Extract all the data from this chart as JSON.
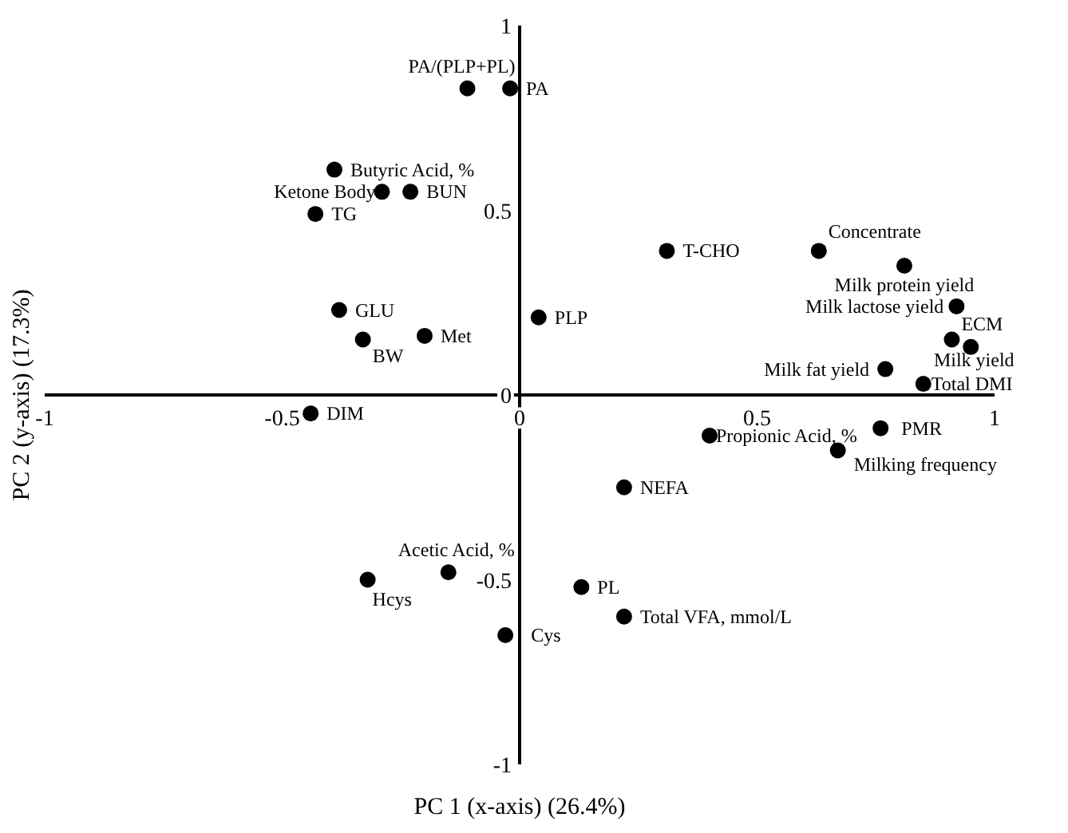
{
  "chart_data": {
    "type": "scatter",
    "xlabel": "PC 1 (x-axis) (26.4%)",
    "ylabel": "PC 2 (y-axis) (17.3%)",
    "xlim": [
      -1,
      1
    ],
    "ylim": [
      -1,
      1
    ],
    "xticks": [
      -1,
      -0.5,
      0,
      0.5,
      1
    ],
    "yticks": [
      -1,
      -0.5,
      0,
      0.5,
      1
    ],
    "grid": false,
    "legend": false,
    "marker": "circle",
    "series": [
      {
        "name": "PA/(PLP+PL)",
        "color": "#000000",
        "x": [
          -0.11
        ],
        "values": [
          0.83
        ]
      },
      {
        "name": "PA",
        "color": "#000000",
        "x": [
          -0.02
        ],
        "values": [
          0.83
        ]
      },
      {
        "name": "Butyric Acid, %",
        "color": "#000000",
        "x": [
          -0.39
        ],
        "values": [
          0.61
        ]
      },
      {
        "name": "Ketone Body",
        "color": "#000000",
        "x": [
          -0.29
        ],
        "values": [
          0.55
        ]
      },
      {
        "name": "BUN",
        "color": "#000000",
        "x": [
          -0.23
        ],
        "values": [
          0.55
        ]
      },
      {
        "name": "TG",
        "color": "#000000",
        "x": [
          -0.43
        ],
        "values": [
          0.49
        ]
      },
      {
        "name": "GLU",
        "color": "#000000",
        "x": [
          -0.38
        ],
        "values": [
          0.23
        ]
      },
      {
        "name": "BW",
        "color": "#000000",
        "x": [
          -0.33
        ],
        "values": [
          0.15
        ]
      },
      {
        "name": "Met",
        "color": "#000000",
        "x": [
          -0.2
        ],
        "values": [
          0.16
        ]
      },
      {
        "name": "DIM",
        "color": "#000000",
        "x": [
          -0.44
        ],
        "values": [
          -0.05
        ]
      },
      {
        "name": "PLP",
        "color": "#000000",
        "x": [
          0.04
        ],
        "values": [
          0.21
        ]
      },
      {
        "name": "T-CHO",
        "color": "#000000",
        "x": [
          0.31
        ],
        "values": [
          0.39
        ]
      },
      {
        "name": "Concentrate",
        "color": "#000000",
        "x": [
          0.63
        ],
        "values": [
          0.39
        ]
      },
      {
        "name": "Milk protein yield",
        "color": "#000000",
        "x": [
          0.81
        ],
        "values": [
          0.35
        ]
      },
      {
        "name": "Milk lactose yield",
        "color": "#000000",
        "x": [
          0.92
        ],
        "values": [
          0.24
        ]
      },
      {
        "name": "ECM",
        "color": "#000000",
        "x": [
          0.91
        ],
        "values": [
          0.15
        ]
      },
      {
        "name": "Milk yield",
        "color": "#000000",
        "x": [
          0.95
        ],
        "values": [
          0.13
        ]
      },
      {
        "name": "Milk fat yield",
        "color": "#000000",
        "x": [
          0.77
        ],
        "values": [
          0.07
        ]
      },
      {
        "name": "Total DMI",
        "color": "#000000",
        "x": [
          0.85
        ],
        "values": [
          0.03
        ]
      },
      {
        "name": "Propionic Acid, %",
        "color": "#000000",
        "x": [
          0.4
        ],
        "values": [
          -0.11
        ]
      },
      {
        "name": "PMR",
        "color": "#000000",
        "x": [
          0.76
        ],
        "values": [
          -0.09
        ]
      },
      {
        "name": "Milking frequency",
        "color": "#000000",
        "x": [
          0.67
        ],
        "values": [
          -0.15
        ]
      },
      {
        "name": "NEFA",
        "color": "#000000",
        "x": [
          0.22
        ],
        "values": [
          -0.25
        ]
      },
      {
        "name": "PL",
        "color": "#000000",
        "x": [
          0.13
        ],
        "values": [
          -0.52
        ]
      },
      {
        "name": "Total VFA, mmol/L",
        "color": "#000000",
        "x": [
          0.22
        ],
        "values": [
          -0.6
        ]
      },
      {
        "name": "Cys",
        "color": "#000000",
        "x": [
          -0.03
        ],
        "values": [
          -0.65
        ]
      },
      {
        "name": "Acetic Acid, %",
        "color": "#000000",
        "x": [
          -0.15
        ],
        "values": [
          -0.48
        ]
      },
      {
        "name": "Hcys",
        "color": "#000000",
        "x": [
          -0.32
        ],
        "values": [
          -0.5
        ]
      }
    ]
  }
}
